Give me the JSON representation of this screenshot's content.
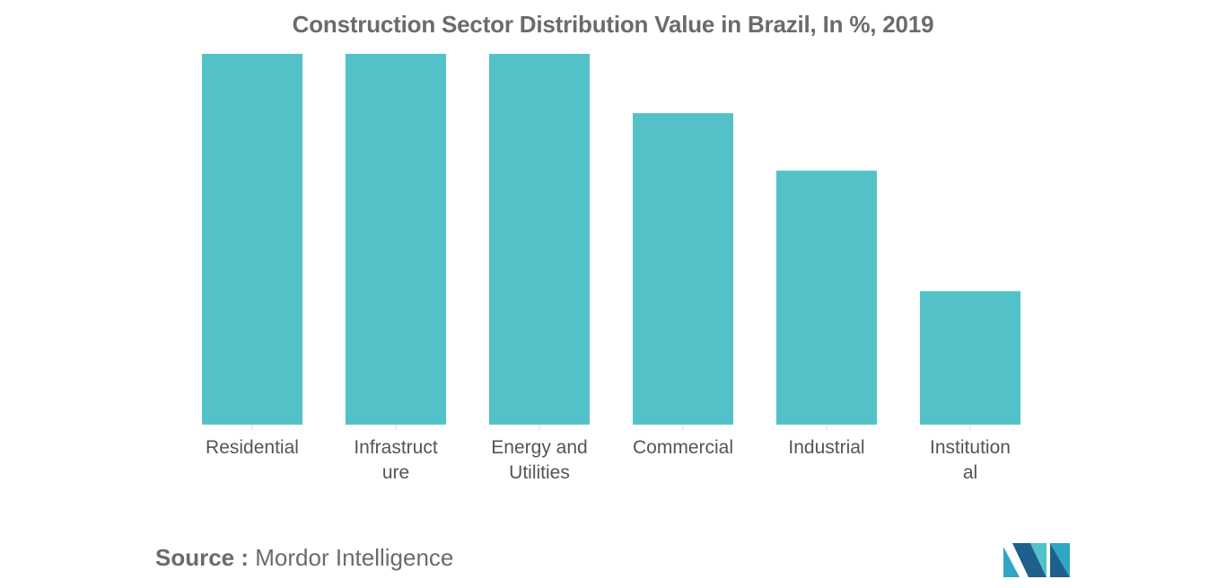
{
  "header": {
    "title": "Construction Sector Distribution Value in Brazil, In %, 2019"
  },
  "footer": {
    "source_label": "Source :",
    "source_value": "Mordor Intelligence"
  },
  "logo": {
    "icon": "mordor-intelligence-logo-icon",
    "colors": [
      "#1f5f8b",
      "#2fa7c4",
      "#4fc3c9"
    ]
  },
  "chart_data": {
    "type": "bar",
    "categories": [
      [
        "Residential"
      ],
      [
        "Infrastruct",
        "ure"
      ],
      [
        "Energy and",
        "Utilities"
      ],
      [
        "Commercial"
      ],
      [
        "Industrial"
      ],
      [
        "Institution",
        "al"
      ]
    ],
    "values": [
      100,
      100,
      100,
      84,
      68.5,
      36
    ],
    "ylim": [
      0,
      100
    ],
    "bar_color": "#52c2c8",
    "grid": false,
    "legend": "none",
    "title": "Construction Sector Distribution Value in Brazil, In %, 2019",
    "xlabel": "",
    "ylabel": ""
  }
}
